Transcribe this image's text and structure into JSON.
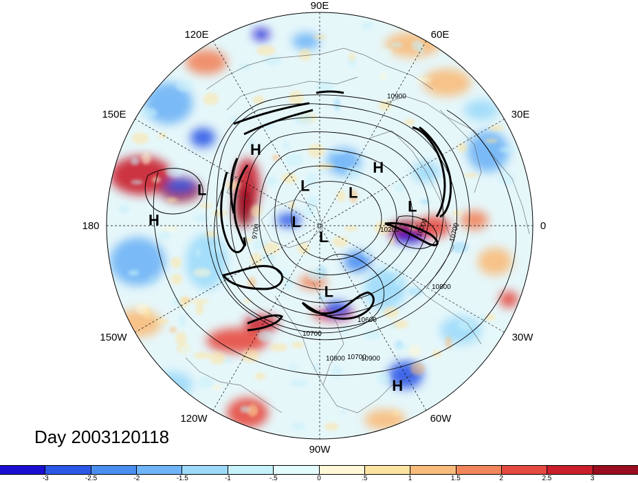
{
  "longitude_labels": {
    "e90": "90E",
    "e60": "60E",
    "e30": "30E",
    "zero": "0",
    "w30": "30W",
    "w60": "60W",
    "w90": "90W",
    "w120": "120W",
    "w150": "150W",
    "dateline": "180",
    "e150": "150E",
    "e120": "120E"
  },
  "pressure_centers": [
    {
      "label": "H",
      "lon": 130,
      "lat": 48
    },
    {
      "label": "L",
      "lon": 163,
      "lat": 38
    },
    {
      "label": "H",
      "lon": 178,
      "lat": 20
    },
    {
      "label": "L",
      "lon": 110,
      "lat": 72
    },
    {
      "label": "L",
      "lon": 45,
      "lat": 70
    },
    {
      "label": "H",
      "lon": 45,
      "lat": 55
    },
    {
      "label": "L",
      "lon": -70,
      "lat": 85
    },
    {
      "label": "L",
      "lon": 170,
      "lat": 80
    },
    {
      "label": "L",
      "lon": 12,
      "lat": 50
    },
    {
      "label": "L",
      "lon": -82,
      "lat": 62
    },
    {
      "label": "H",
      "lon": -64,
      "lat": 15
    }
  ],
  "contour_labels": [
    "10900",
    "10800",
    "10600",
    "10700",
    "10900",
    "10800",
    "10700",
    "10200",
    "9700",
    "10000",
    "10700"
  ],
  "date_label": "Day 2003120118",
  "colorbar": {
    "colors": [
      "#1a0fd1",
      "#2c58e6",
      "#4a8ef0",
      "#6fb4f6",
      "#9ddaf9",
      "#c6f1fb",
      "#e4fbfc",
      "#fff8d6",
      "#fde3a1",
      "#f8bc7c",
      "#f1855c",
      "#e54a41",
      "#c91f2c",
      "#9a0d1e"
    ],
    "tick_labels": [
      "-3",
      "-2.5",
      "-2",
      "-1.5",
      "-1",
      "-.5",
      "0",
      ".5",
      "1",
      "1.5",
      "2",
      "2.5",
      "3"
    ]
  }
}
